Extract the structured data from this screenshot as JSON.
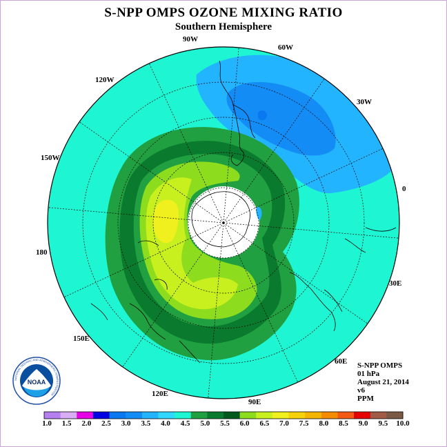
{
  "title": "S-NPP OMPS OZONE MIXING RATIO",
  "subtitle": "Southern Hemisphere",
  "longitude_labels": {
    "w90": "90W",
    "w60": "60W",
    "w30": "30W",
    "e0": "0",
    "w120": "120W",
    "w150": "150W",
    "e180": "180",
    "e30": "30E",
    "e60": "60E",
    "e90": "90E",
    "e120": "120E",
    "e150": "150E"
  },
  "info": {
    "instrument": "S-NPP OMPS",
    "pressure_level": "01 hPa",
    "date": "August 21, 2014",
    "version": "v6",
    "units": "PPM"
  },
  "logo": {
    "text": "NOAA",
    "ring_text": "NATIONAL OCEANIC AND ATMOSPHERIC ADMINISTRATION"
  },
  "legend": {
    "colors": [
      "#b57ff0",
      "#d7aef5",
      "#e600e6",
      "#0000e0",
      "#0a78f0",
      "#148cf5",
      "#23b4ff",
      "#30d8ff",
      "#1ef5d2",
      "#20a040",
      "#0a7a2e",
      "#005a1e",
      "#8edc1e",
      "#c8f01e",
      "#f0f01e",
      "#f5d20a",
      "#f5b400",
      "#f58c00",
      "#f55a14",
      "#e60000",
      "#a05a46",
      "#7a5a44"
    ],
    "tick_labels": [
      "1.0",
      "1.5",
      "2.0",
      "2.5",
      "3.0",
      "3.5",
      "4.0",
      "4.5",
      "5.0",
      "5.5",
      "6.0",
      "6.5",
      "7.0",
      "7.5",
      "8.0",
      "8.5",
      "9.0",
      "9.5",
      "10.0"
    ]
  },
  "field_colors": {
    "background": "#1ef5d2",
    "low_light": "#23b4ff",
    "low_mid": "#148cf5",
    "low_core": "#0a78f0",
    "ring_outer": "#20a040",
    "ring_inner": "#0a7a2e",
    "high_green": "#8edc1e",
    "high_yellowgreen": "#c8f01e",
    "high_yellow": "#f0f01e",
    "pole": "#ffffff"
  }
}
